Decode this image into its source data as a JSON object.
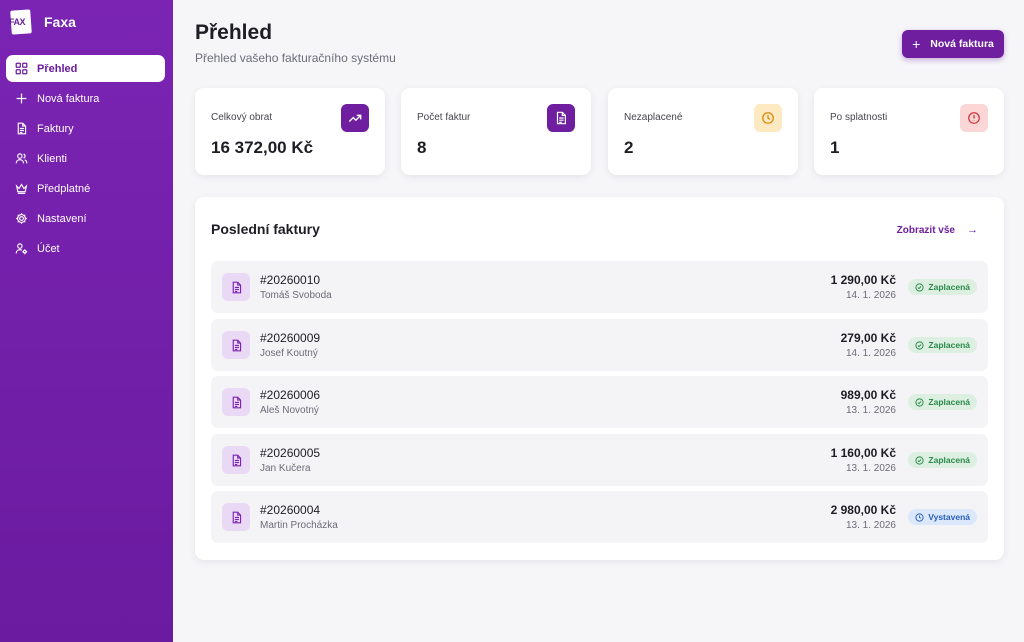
{
  "app": {
    "name": "Faxa",
    "logo_text": "FAX"
  },
  "sidebar": {
    "items": [
      {
        "label": "Přehled",
        "icon": "dashboard-icon",
        "active": true
      },
      {
        "label": "Nová faktura",
        "icon": "plus-icon"
      },
      {
        "label": "Faktury",
        "icon": "document-icon"
      },
      {
        "label": "Klienti",
        "icon": "users-icon"
      },
      {
        "label": "Předplatné",
        "icon": "crown-icon"
      },
      {
        "label": "Nastavení",
        "icon": "gear-icon"
      },
      {
        "label": "Účet",
        "icon": "user-settings-icon"
      }
    ]
  },
  "header": {
    "title": "Přehled",
    "subtitle": "Přehled vašeho fakturačního systému",
    "new_button": "Nová faktura"
  },
  "stats": [
    {
      "label": "Celkový obrat",
      "value": "16 372,00 Kč",
      "icon": "trending-up-icon"
    },
    {
      "label": "Počet faktur",
      "value": "8",
      "icon": "document-icon"
    },
    {
      "label": "Nezaplacené",
      "value": "2",
      "icon": "clock-icon"
    },
    {
      "label": "Po splatnosti",
      "value": "1",
      "icon": "alert-icon"
    }
  ],
  "recent": {
    "title": "Poslední faktury",
    "view_all": "Zobrazit vše",
    "rows": [
      {
        "number": "#20260010",
        "client": "Tomáš Svoboda",
        "amount": "1 290,00 Kč",
        "date": "14. 1. 2026",
        "status": "Zaplacená",
        "status_type": "paid"
      },
      {
        "number": "#20260009",
        "client": "Josef Koutný",
        "amount": "279,00 Kč",
        "date": "14. 1. 2026",
        "status": "Zaplacená",
        "status_type": "paid"
      },
      {
        "number": "#20260006",
        "client": "Aleš Novotný",
        "amount": "989,00 Kč",
        "date": "13. 1. 2026",
        "status": "Zaplacená",
        "status_type": "paid"
      },
      {
        "number": "#20260005",
        "client": "Jan Kučera",
        "amount": "1 160,00 Kč",
        "date": "13. 1. 2026",
        "status": "Zaplacená",
        "status_type": "paid"
      },
      {
        "number": "#20260004",
        "client": "Martin Procházka",
        "amount": "2 980,00 Kč",
        "date": "13. 1. 2026",
        "status": "Vystavená",
        "status_type": "issued"
      }
    ]
  },
  "colors": {
    "accent": "#6e1e9f",
    "sidebar": "#7b24b4",
    "paid": "#2b8a4a",
    "issued": "#2b5fb8"
  }
}
